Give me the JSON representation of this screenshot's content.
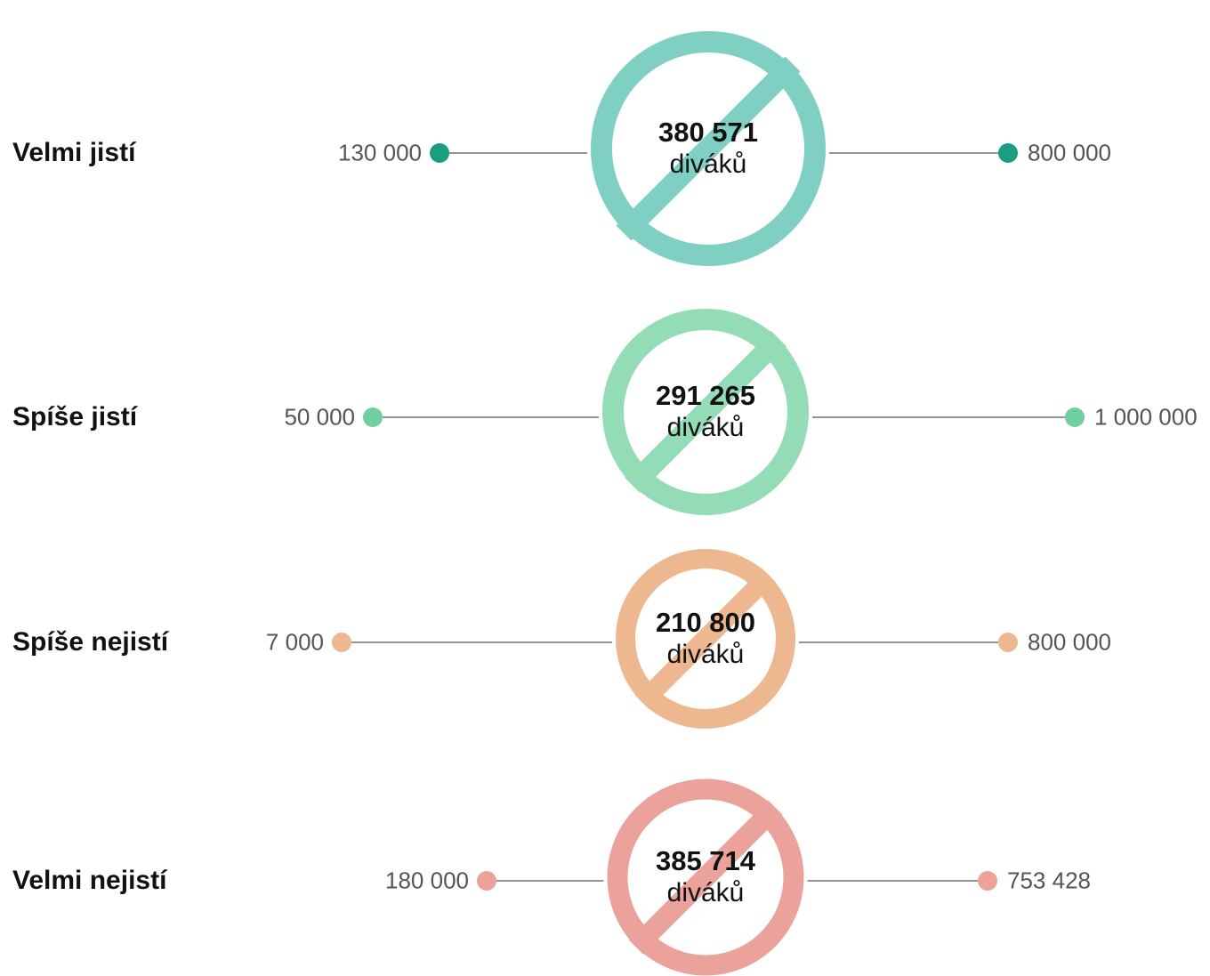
{
  "chart_data": {
    "type": "range",
    "unit": "diváků",
    "rows": [
      {
        "label": "Velmi jistí",
        "min": 130000,
        "max": 800000,
        "average": 380571,
        "min_label": "130 000",
        "max_label": "800 000",
        "average_label": "380 571",
        "color": "#1a9e82",
        "ring_color": "#7fcfc2"
      },
      {
        "label": "Spíše jistí",
        "min": 50000,
        "max": 1000000,
        "average": 291265,
        "min_label": "50 000",
        "max_label": "1 000 000",
        "average_label": "291 265",
        "color": "#6fcf9f",
        "ring_color": "#93dcb6"
      },
      {
        "label": "Spíše nejistí",
        "min": 7000,
        "max": 800000,
        "average": 210800,
        "min_label": "7 000",
        "max_label": "800 000",
        "average_label": "210 800",
        "color": "#edb78f",
        "ring_color": "#edb78f"
      },
      {
        "label": "Velmi nejistí",
        "min": 180000,
        "max": 753428,
        "average": 385714,
        "min_label": "180 000",
        "max_label": "753 428",
        "average_label": "385 714",
        "color": "#eba29a",
        "ring_color": "#eba29a"
      }
    ]
  }
}
